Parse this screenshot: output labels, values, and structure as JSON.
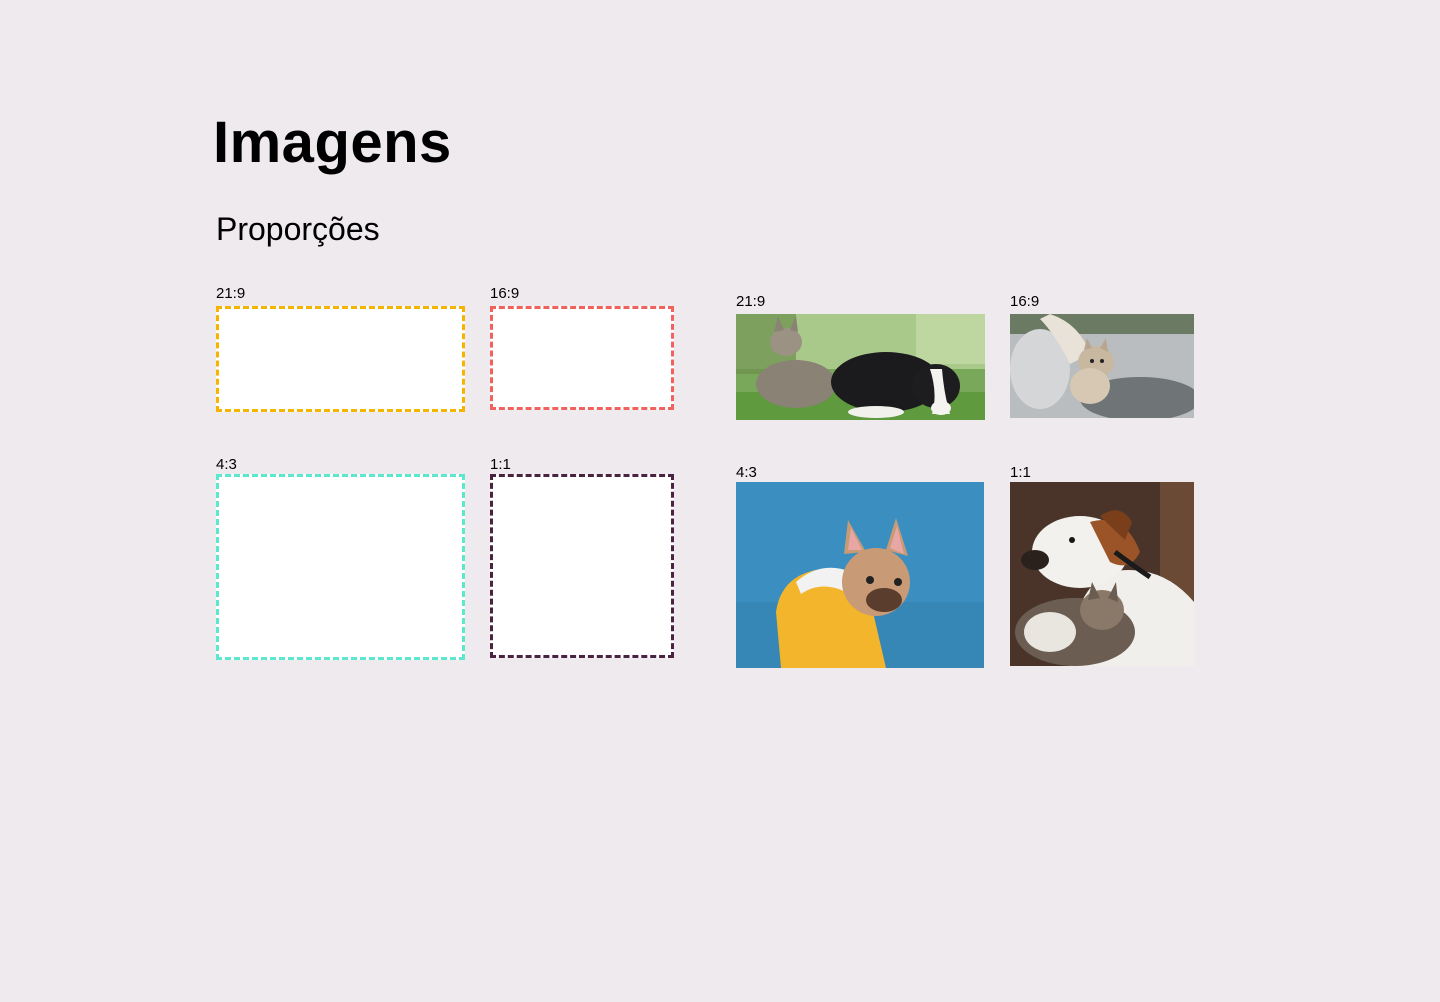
{
  "header": {
    "title": "Imagens",
    "subtitle": "Proporções"
  },
  "placeholders": [
    {
      "label": "21:9",
      "color": "#f4b400"
    },
    {
      "label": "16:9",
      "color": "#f0635d"
    },
    {
      "label": "4:3",
      "color": "#5ce8cf"
    },
    {
      "label": "1:1",
      "color": "#4a2340"
    }
  ],
  "photos": [
    {
      "label": "21:9",
      "subject": "cat-and-puppy-on-grass"
    },
    {
      "label": "16:9",
      "subject": "kitten-on-sofa"
    },
    {
      "label": "4:3",
      "subject": "french-bulldog-in-yellow-hoodie"
    },
    {
      "label": "1:1",
      "subject": "dog-and-cat-cuddling"
    }
  ]
}
